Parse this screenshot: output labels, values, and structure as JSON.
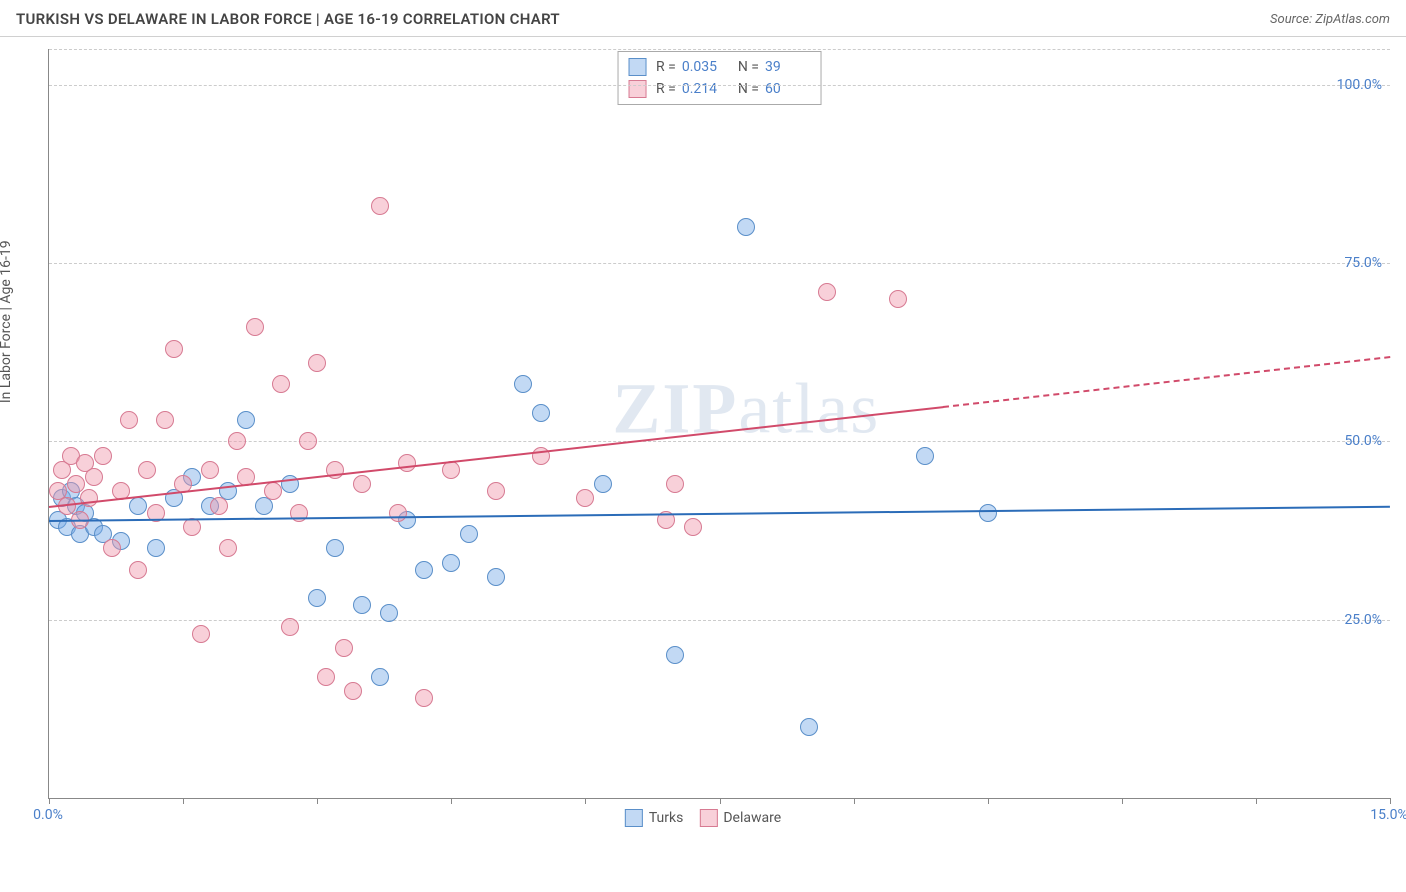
{
  "header": {
    "title": "TURKISH VS DELAWARE IN LABOR FORCE | AGE 16-19 CORRELATION CHART",
    "source": "Source: ZipAtlas.com"
  },
  "chart": {
    "type": "scatter",
    "ylabel": "In Labor Force | Age 16-19",
    "xlim": [
      0,
      15
    ],
    "ylim": [
      0,
      105
    ],
    "x_ticks": [
      0,
      1.5,
      3,
      4.5,
      6,
      7.5,
      9,
      10.5,
      12,
      13.5,
      15
    ],
    "x_tick_labels": {
      "0": "0.0%",
      "15": "15.0%"
    },
    "y_gridlines": [
      25,
      50,
      75,
      100,
      105
    ],
    "y_tick_labels": {
      "25": "25.0%",
      "50": "50.0%",
      "75": "75.0%",
      "100": "100.0%"
    },
    "background_color": "#ffffff",
    "grid_color": "#cccccc",
    "axis_color": "#888888",
    "label_color": "#4a7fc9",
    "series": [
      {
        "name": "Turks",
        "fill_color": "rgba(120,170,230,0.45)",
        "stroke_color": "#5a8fc9",
        "marker_radius": 9,
        "r_value": "0.035",
        "n_value": "39",
        "trend": {
          "x1": 0,
          "y1": 39,
          "x2": 15,
          "y2": 41,
          "color": "#2b6cb8",
          "dashed_after_x": null
        },
        "points": [
          {
            "x": 0.1,
            "y": 39
          },
          {
            "x": 0.15,
            "y": 42
          },
          {
            "x": 0.2,
            "y": 38
          },
          {
            "x": 0.25,
            "y": 43
          },
          {
            "x": 0.3,
            "y": 41
          },
          {
            "x": 0.35,
            "y": 37
          },
          {
            "x": 0.4,
            "y": 40
          },
          {
            "x": 0.5,
            "y": 38
          },
          {
            "x": 0.6,
            "y": 37
          },
          {
            "x": 0.8,
            "y": 36
          },
          {
            "x": 1.0,
            "y": 41
          },
          {
            "x": 1.2,
            "y": 35
          },
          {
            "x": 1.4,
            "y": 42
          },
          {
            "x": 1.6,
            "y": 45
          },
          {
            "x": 1.8,
            "y": 41
          },
          {
            "x": 2.0,
            "y": 43
          },
          {
            "x": 2.2,
            "y": 53
          },
          {
            "x": 2.4,
            "y": 41
          },
          {
            "x": 2.7,
            "y": 44
          },
          {
            "x": 3.0,
            "y": 28
          },
          {
            "x": 3.2,
            "y": 35
          },
          {
            "x": 3.5,
            "y": 27
          },
          {
            "x": 3.7,
            "y": 17
          },
          {
            "x": 3.8,
            "y": 26
          },
          {
            "x": 4.0,
            "y": 39
          },
          {
            "x": 4.2,
            "y": 32
          },
          {
            "x": 4.5,
            "y": 33
          },
          {
            "x": 4.7,
            "y": 37
          },
          {
            "x": 5.0,
            "y": 31
          },
          {
            "x": 5.3,
            "y": 58
          },
          {
            "x": 5.5,
            "y": 54
          },
          {
            "x": 6.2,
            "y": 44
          },
          {
            "x": 7.0,
            "y": 20
          },
          {
            "x": 7.8,
            "y": 80
          },
          {
            "x": 8.5,
            "y": 10
          },
          {
            "x": 9.8,
            "y": 48
          },
          {
            "x": 10.5,
            "y": 40
          }
        ]
      },
      {
        "name": "Delaware",
        "fill_color": "rgba(240,150,170,0.45)",
        "stroke_color": "#d77a92",
        "marker_radius": 9,
        "r_value": "0.214",
        "n_value": "60",
        "trend": {
          "x1": 0,
          "y1": 41,
          "x2": 15,
          "y2": 62,
          "color": "#d14a6a",
          "dashed_after_x": 10
        },
        "points": [
          {
            "x": 0.1,
            "y": 43
          },
          {
            "x": 0.15,
            "y": 46
          },
          {
            "x": 0.2,
            "y": 41
          },
          {
            "x": 0.25,
            "y": 48
          },
          {
            "x": 0.3,
            "y": 44
          },
          {
            "x": 0.35,
            "y": 39
          },
          {
            "x": 0.4,
            "y": 47
          },
          {
            "x": 0.45,
            "y": 42
          },
          {
            "x": 0.5,
            "y": 45
          },
          {
            "x": 0.6,
            "y": 48
          },
          {
            "x": 0.7,
            "y": 35
          },
          {
            "x": 0.8,
            "y": 43
          },
          {
            "x": 0.9,
            "y": 53
          },
          {
            "x": 1.0,
            "y": 32
          },
          {
            "x": 1.1,
            "y": 46
          },
          {
            "x": 1.2,
            "y": 40
          },
          {
            "x": 1.3,
            "y": 53
          },
          {
            "x": 1.4,
            "y": 63
          },
          {
            "x": 1.5,
            "y": 44
          },
          {
            "x": 1.6,
            "y": 38
          },
          {
            "x": 1.7,
            "y": 23
          },
          {
            "x": 1.8,
            "y": 46
          },
          {
            "x": 1.9,
            "y": 41
          },
          {
            "x": 2.0,
            "y": 35
          },
          {
            "x": 2.1,
            "y": 50
          },
          {
            "x": 2.2,
            "y": 45
          },
          {
            "x": 2.3,
            "y": 66
          },
          {
            "x": 2.5,
            "y": 43
          },
          {
            "x": 2.6,
            "y": 58
          },
          {
            "x": 2.7,
            "y": 24
          },
          {
            "x": 2.8,
            "y": 40
          },
          {
            "x": 2.9,
            "y": 50
          },
          {
            "x": 3.0,
            "y": 61
          },
          {
            "x": 3.1,
            "y": 17
          },
          {
            "x": 3.2,
            "y": 46
          },
          {
            "x": 3.3,
            "y": 21
          },
          {
            "x": 3.4,
            "y": 15
          },
          {
            "x": 3.5,
            "y": 44
          },
          {
            "x": 3.7,
            "y": 83
          },
          {
            "x": 3.9,
            "y": 40
          },
          {
            "x": 4.0,
            "y": 47
          },
          {
            "x": 4.2,
            "y": 14
          },
          {
            "x": 4.5,
            "y": 46
          },
          {
            "x": 5.0,
            "y": 43
          },
          {
            "x": 5.5,
            "y": 48
          },
          {
            "x": 6.0,
            "y": 42
          },
          {
            "x": 6.9,
            "y": 39
          },
          {
            "x": 7.0,
            "y": 44
          },
          {
            "x": 7.2,
            "y": 38
          },
          {
            "x": 8.7,
            "y": 71
          },
          {
            "x": 9.5,
            "y": 70
          }
        ]
      }
    ],
    "legend_bottom": [
      {
        "label": "Turks",
        "fill": "rgba(120,170,230,0.45)",
        "stroke": "#5a8fc9"
      },
      {
        "label": "Delaware",
        "fill": "rgba(240,150,170,0.45)",
        "stroke": "#d77a92"
      }
    ],
    "watermark": "ZIPatlas"
  }
}
